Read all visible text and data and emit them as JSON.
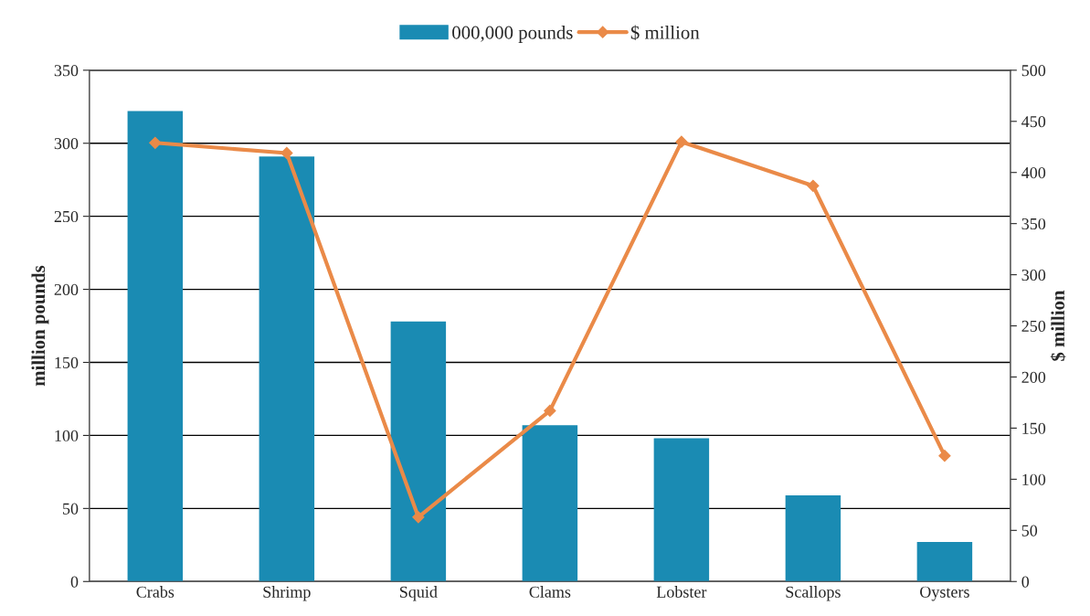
{
  "chart_data": {
    "type": "bar",
    "categories": [
      "Crabs",
      "Shrimp",
      "Squid",
      "Clams",
      "Lobster",
      "Scallops",
      "Oysters"
    ],
    "series": [
      {
        "name": "000,000 pounds",
        "color": "#1a8bb3",
        "values": [
          322,
          291,
          178,
          107,
          98,
          59,
          27
        ]
      },
      {
        "name": "$ million",
        "type": "line",
        "axis": "y2",
        "color": "#ea8a48",
        "marker": "diamond",
        "values": [
          429,
          419,
          63,
          167,
          430,
          387,
          123
        ]
      }
    ],
    "ylabel": "million pounds",
    "y2label": "$ million",
    "ylim": [
      0,
      350
    ],
    "yticks": [
      0,
      50,
      100,
      150,
      200,
      250,
      300,
      350
    ],
    "y2lim": [
      0,
      500
    ],
    "y2ticks": [
      0,
      50,
      100,
      150,
      200,
      250,
      300,
      350,
      400,
      450,
      500
    ],
    "grid": "y",
    "legend": "top"
  }
}
